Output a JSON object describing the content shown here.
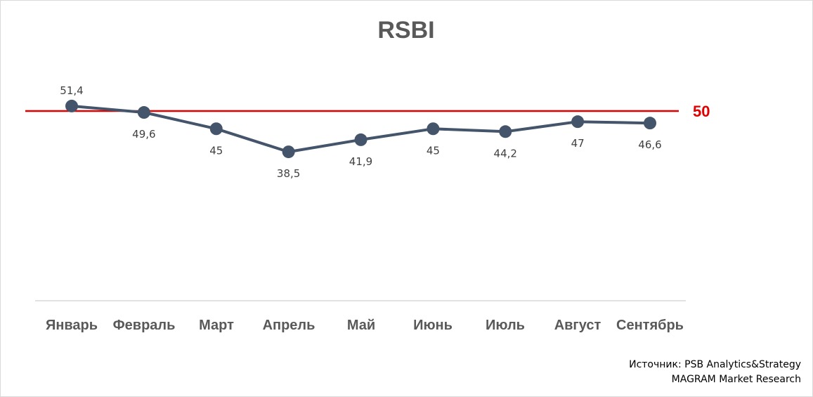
{
  "chart_data": {
    "type": "line",
    "title": "RSBI",
    "categories": [
      "Январь",
      "Февраль",
      "Март",
      "Апрель",
      "Май",
      "Июнь",
      "Июль",
      "Август",
      "Сентябрь"
    ],
    "series": [
      {
        "values": [
          51.4,
          49.6,
          45,
          38.5,
          41.9,
          45,
          44.2,
          47,
          46.6
        ],
        "labels": [
          "51,4",
          "49,6",
          "45",
          "38,5",
          "41,9",
          "45",
          "44,2",
          "47",
          "46,6"
        ],
        "color": "#44546a"
      }
    ],
    "reference_line": {
      "value": 50,
      "label": "50",
      "color": "#e00000"
    },
    "grid": false,
    "legend": "none"
  },
  "source": {
    "line1": "Источник: PSB Analytics&Strategy",
    "line2": "MAGRAM Market Research"
  }
}
